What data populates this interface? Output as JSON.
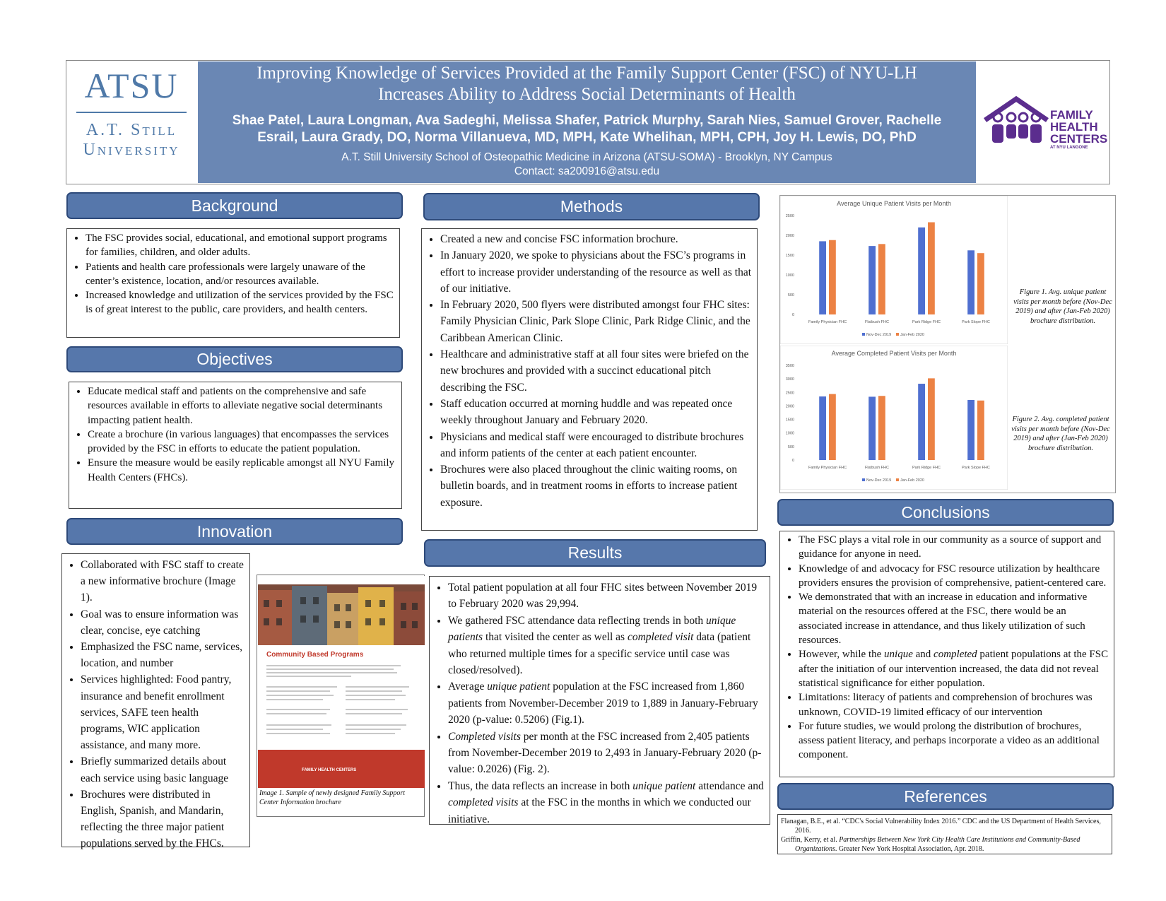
{
  "header": {
    "title_lines": [
      "Improving Knowledge of Services Provided at the Family Support Center (FSC) of NYU-LH",
      "Increases Ability to Address Social Determinants of Health"
    ],
    "author_lines": [
      "Shae Patel, Laura Longman, Ava Sadeghi, Melissa Shafer, Patrick Murphy, Sarah Nies, Samuel Grover, Rachelle",
      "Esrail, Laura Grady, DO, Norma Villanueva, MD, MPH, Kate Whelihan, MPH, CPH, Joy H. Lewis, DO, PhD"
    ],
    "affiliation": "A.T. Still University School of Osteopathic Medicine in Arizona (ATSU-SOMA) - Brooklyn, NY Campus",
    "contact": "Contact: sa200916@atsu.edu"
  },
  "logo_left": {
    "acronym": "ATSU",
    "line1": "A.T. Still",
    "line2": "University"
  },
  "logo_right": {
    "lines": [
      "FAMILY",
      "HEALTH",
      "CENTERS"
    ],
    "sub": "AT NYU LANGONE"
  },
  "background": {
    "heading": "Background",
    "items": [
      [
        "The FSC provides social, educational, and emotional support programs for families, children, and older adults."
      ],
      [
        "Patients and health care professionals were largely unaware of the center’s existence, location, and/or resources available."
      ],
      [
        "Increased knowledge and utilization of the services provided by the FSC is of great interest to the public, care providers, and health centers."
      ]
    ]
  },
  "objectives": {
    "heading": "Objectives",
    "items": [
      [
        "Educate medical staff and patients on the comprehensive and safe resources available in efforts to alleviate negative social determinants impacting patient health."
      ],
      [
        "Create a brochure (in various languages) that encompasses the services provided by the FSC in efforts to educate the patient population."
      ],
      [
        "Ensure the measure would be easily replicable amongst all NYU Family Health Centers (FHCs)."
      ]
    ]
  },
  "innovation": {
    "heading": "Innovation",
    "items": [
      [
        "Collaborated with FSC staff to create a new informative brochure (Image 1)."
      ],
      [
        "Goal was to ensure information was clear, concise, eye catching"
      ],
      [
        "Emphasized the FSC name, services, location, and number"
      ],
      [
        "Services highlighted: Food pantry, insurance and benefit enrollment services, SAFE teen health programs, WIC application assistance, and many more."
      ],
      [
        "Briefly summarized details about each service using basic language"
      ],
      [
        "Brochures were distributed in English, Spanish, and Mandarin, reflecting the three major patient populations served by the FHCs."
      ]
    ],
    "brochure_title": "Community Based Programs",
    "brochure_logo": "FAMILY HEALTH CENTERS",
    "image_caption": "Image 1. Sample of newly designed Family Support Center Information brochure"
  },
  "methods": {
    "heading": "Methods",
    "items": [
      [
        "Created a new and concise FSC information brochure."
      ],
      [
        "In January 2020, we spoke to physicians about the FSC’s programs in effort to increase provider understanding of the resource as well as that of our initiative."
      ],
      [
        "In February 2020, 500 flyers were distributed amongst four FHC sites: Family Physician Clinic, Park Slope Clinic, Park Ridge Clinic, and the Caribbean American Clinic."
      ],
      [
        "Healthcare and administrative staff at all four sites were briefed on the new brochures and provided with a succinct educational pitch describing the FSC."
      ],
      [
        "Staff education occurred at morning huddle and was repeated once weekly throughout January and February 2020."
      ],
      [
        "Physicians and medical staff were encouraged to distribute brochures and inform patients of the center at each patient encounter."
      ],
      [
        "Brochures were also placed throughout the clinic waiting rooms, on bulletin boards, and in treatment rooms in efforts to increase patient exposure."
      ]
    ]
  },
  "results": {
    "heading": "Results",
    "items": [
      [
        "Total patient population at all four FHC sites between November 2019 to February 2020 was 29,994."
      ],
      [
        "We gathered FSC attendance data reflecting trends in both ",
        "unique patients",
        " that visited the center as well as ",
        "completed visit",
        " data (patient who returned multiple times for a specific service until case was closed/resolved)."
      ],
      [
        "Average ",
        "unique patient",
        " population at the FSC increased from 1,860 patients from November-December 2019 to 1,889 in January-February 2020 (p-value: 0.5206) (Fig.1)."
      ],
      [
        "",
        "Completed visits",
        " per month at the FSC increased from 2,405 patients from November-December 2019 to 2,493 in January-February 2020 (p-value: 0.2026) (Fig. 2)."
      ],
      [
        "Thus, the data reflects an increase in both ",
        "unique patient",
        " attendance and ",
        "completed visits",
        " at the FSC in the months in which we conducted our initiative."
      ]
    ]
  },
  "conclusions": {
    "heading": "Conclusions",
    "items": [
      [
        "The FSC plays a vital role in our community as a source of support and guidance for anyone in need."
      ],
      [
        "Knowledge of and advocacy for FSC resource utilization by healthcare providers ensures the provision of comprehensive, patient-centered care."
      ],
      [
        "We demonstrated that with an increase in education and informative material on the resources offered at the FSC, there would be an associated increase in attendance, and thus likely utilization of such resources."
      ],
      [
        "However, while the ",
        "unique",
        " and ",
        "completed",
        " patient populations at the FSC after the initiation of our intervention increased, the data did not reveal statistical significance for either population."
      ],
      [
        "Limitations: literacy of patients and comprehension of brochures was unknown, COVID-19 limited efficacy of our intervention"
      ],
      [
        "For future studies, we would prolong the distribution of brochures, assess patient literacy, and perhaps incorporate a video as an additional component."
      ]
    ]
  },
  "references": {
    "heading": "References",
    "items": [
      [
        "Flanagan, B.E., et al. “CDC's Social Vulnerability Index 2016.” CDC and the US Department of Health Services, 2016."
      ],
      [
        "Griffin, Kerry, et al. ",
        "Partnerships Between New York City Health Care Institutions and Community-Based Organizations",
        ". Greater New York Hospital Association, Apr. 2018."
      ]
    ]
  },
  "chart_data": [
    {
      "type": "bar",
      "title": "Average Unique Patient Visits per Month",
      "categories": [
        "Family Physician FHC",
        "Flatbush FHC",
        "Park Ridge FHC",
        "Park Slope FHC"
      ],
      "series": [
        {
          "name": "Nov-Dec 2019",
          "color": "#4f6fd0",
          "values": [
            1850,
            1730,
            2200,
            1620
          ]
        },
        {
          "name": "Jan-Feb 2020",
          "color": "#ec8244",
          "values": [
            1880,
            1780,
            2330,
            1550
          ]
        }
      ],
      "ylim": [
        0,
        2500
      ],
      "yticks": [
        0,
        500,
        1000,
        1500,
        2000,
        2500
      ],
      "legend": "bottom",
      "caption": "Figure 1. Avg. unique patient visits per month before (Nov-Dec 2019) and after (Jan-Feb 2020) brochure distribution."
    },
    {
      "type": "bar",
      "title": "Average Completed Patient Visits per Month",
      "categories": [
        "Family Physician FHC",
        "Flatbush FHC",
        "Park Ridge FHC",
        "Park Slope FHC"
      ],
      "series": [
        {
          "name": "Nov-Dec 2019",
          "color": "#4f6fd0",
          "values": [
            2350,
            2340,
            2820,
            2220
          ]
        },
        {
          "name": "Jan-Feb 2020",
          "color": "#ec8244",
          "values": [
            2440,
            2370,
            3020,
            2200
          ]
        }
      ],
      "ylim": [
        0,
        3500
      ],
      "yticks": [
        0,
        500,
        1000,
        1500,
        2000,
        2500,
        3000,
        3500
      ],
      "legend": "bottom",
      "caption": "Figure 2. Avg. completed patient visits per month before (Nov-Dec 2019) and after (Jan-Feb 2020) brochure distribution."
    }
  ]
}
